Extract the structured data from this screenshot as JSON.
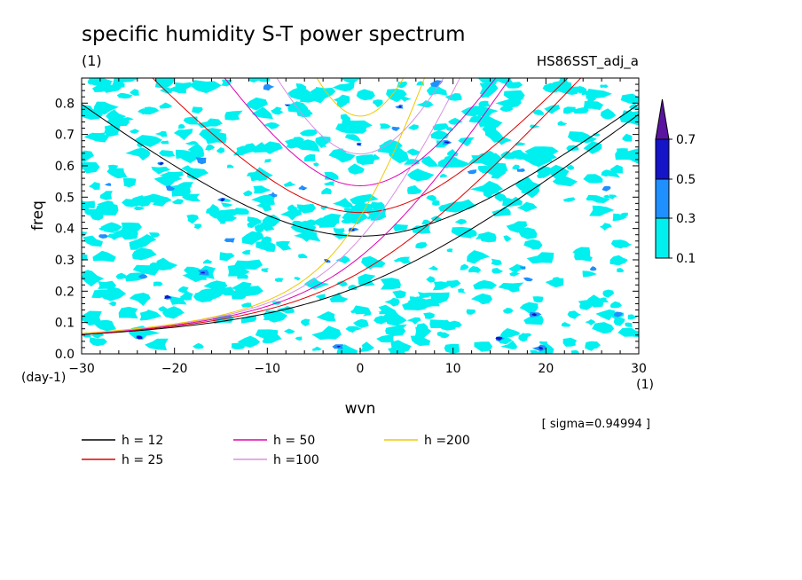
{
  "chart_data": {
    "type": "heatmap",
    "title": "specific humidity S-T power spectrum",
    "title_unit": "(1)",
    "experiment": "HS86SST_adj_a",
    "xlabel": "wvn",
    "x_unit": "(1)",
    "ylabel": "freq",
    "y_unit": "(day-1)",
    "xlim": [
      -30,
      30
    ],
    "ylim": [
      0,
      0.88
    ],
    "x_ticks": [
      -30,
      -20,
      -10,
      0,
      10,
      20,
      30
    ],
    "y_ticks": [
      0,
      0.1,
      0.2,
      0.3,
      0.4,
      0.5,
      0.6,
      0.7,
      0.8
    ],
    "sigma_label": "[ sigma=0.94994 ]",
    "colorbar": {
      "levels": [
        0.1,
        0.3,
        0.5,
        0.7
      ],
      "labels": [
        "0.1",
        "0.3",
        "0.5",
        "0.7"
      ],
      "colors": [
        "#00f0f0",
        "#1e90ff",
        "#1414c8",
        "#5a14a0"
      ]
    },
    "dispersion_curves": [
      {
        "label": "h = 12",
        "h": 12,
        "color": "#000000"
      },
      {
        "label": "h = 25",
        "h": 25,
        "color": "#e00000"
      },
      {
        "label": "h = 50",
        "h": 50,
        "color": "#e000b0"
      },
      {
        "label": "h =100",
        "h": 100,
        "color": "#d890e0"
      },
      {
        "label": "h =200",
        "h": 200,
        "color": "#f0c800"
      }
    ]
  }
}
